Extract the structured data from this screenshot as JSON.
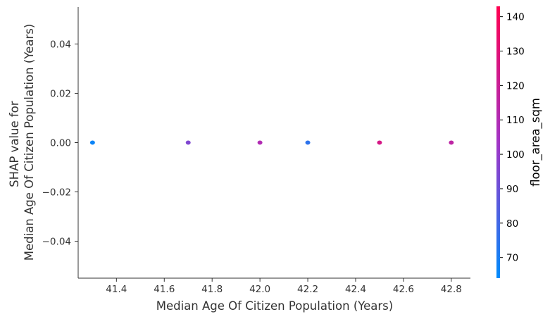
{
  "chart_data": {
    "type": "scatter",
    "title": "",
    "xlabel": "Median Age Of Citizen Population (Years)",
    "ylabel_lines": [
      "SHAP value for",
      "Median Age Of Citizen Population (Years)"
    ],
    "xlim": [
      41.24,
      42.88
    ],
    "ylim": [
      -0.055,
      0.055
    ],
    "xticks": [
      "41.4",
      "41.6",
      "41.8",
      "42.0",
      "42.2",
      "42.4",
      "42.6",
      "42.8"
    ],
    "yticks": [
      "−0.04",
      "−0.02",
      "0.00",
      "0.02",
      "0.04"
    ],
    "points": [
      {
        "x": 41.3,
        "y": 0.0,
        "color_value": 67
      },
      {
        "x": 41.7,
        "y": 0.0,
        "color_value": 95
      },
      {
        "x": 42.0,
        "y": 0.0,
        "color_value": 110
      },
      {
        "x": 42.2,
        "y": 0.0,
        "color_value": 75
      },
      {
        "x": 42.5,
        "y": 0.0,
        "color_value": 125
      },
      {
        "x": 42.8,
        "y": 0.0,
        "color_value": 115
      }
    ],
    "colorbar": {
      "label": "floor_area_sqm",
      "range": [
        64,
        143
      ],
      "ticks": [
        "70",
        "80",
        "90",
        "100",
        "110",
        "120",
        "130",
        "140"
      ],
      "low_color": "#008bfb",
      "mid_color": "#a234c6",
      "high_color": "#ff0051"
    },
    "grid": false
  }
}
